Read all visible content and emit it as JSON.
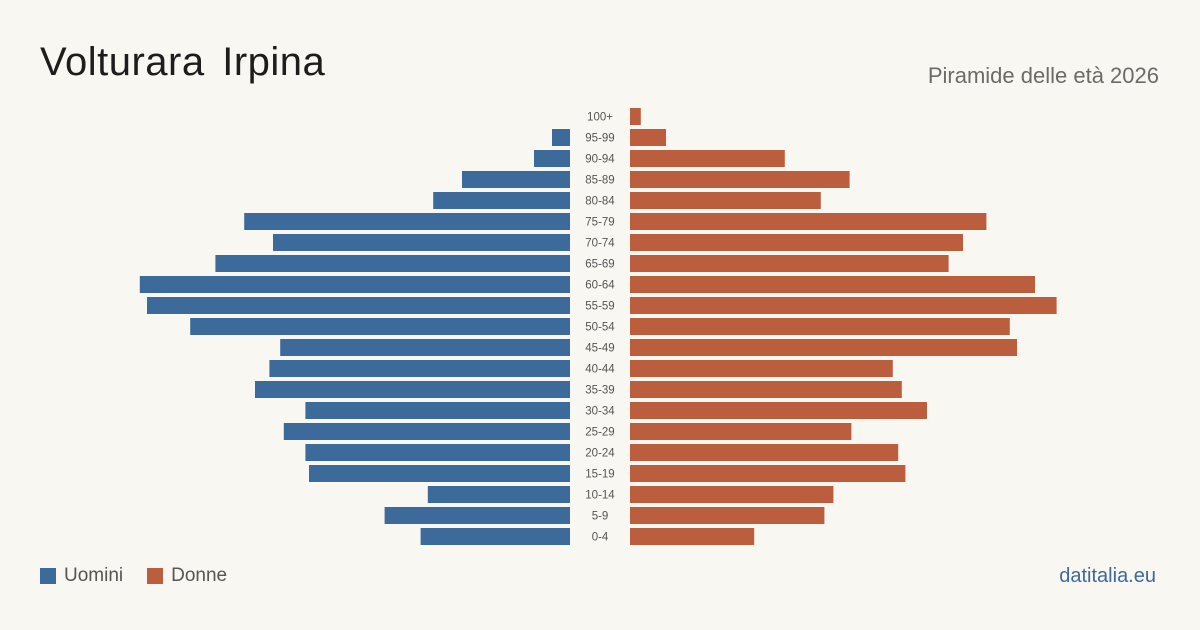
{
  "title": "Volturara  Irpina",
  "subtitle": "Piramide delle età 2026",
  "brand": "datitalia.eu",
  "colors": {
    "male": "#3c6a9b",
    "female": "#bb5e3e",
    "background": "#f9f7f2"
  },
  "legend": {
    "male_label": "Uomini",
    "female_label": "Donne"
  },
  "chart_data": {
    "type": "bar",
    "orientation": "horizontal-population-pyramid",
    "categories": [
      "100+",
      "95-99",
      "90-94",
      "85-89",
      "80-84",
      "75-79",
      "70-74",
      "65-69",
      "60-64",
      "55-59",
      "50-54",
      "45-49",
      "40-44",
      "35-39",
      "30-34",
      "25-29",
      "20-24",
      "15-19",
      "10-14",
      "5-9",
      "0-4"
    ],
    "series": [
      {
        "name": "Uomini",
        "values": [
          0,
          1,
          2,
          6,
          7.6,
          18.1,
          16.5,
          19.7,
          23.9,
          23.5,
          21.1,
          16.1,
          16.7,
          17.5,
          14.7,
          15.9,
          14.7,
          14.5,
          7.9,
          10.3,
          8.3
        ]
      },
      {
        "name": "Donne",
        "values": [
          0.6,
          2,
          8.6,
          12.2,
          10.6,
          19.8,
          18.5,
          17.7,
          22.5,
          23.7,
          21.1,
          21.5,
          14.6,
          15.1,
          16.5,
          12.3,
          14.9,
          15.3,
          11.3,
          10.8,
          6.9
        ]
      }
    ]
  }
}
